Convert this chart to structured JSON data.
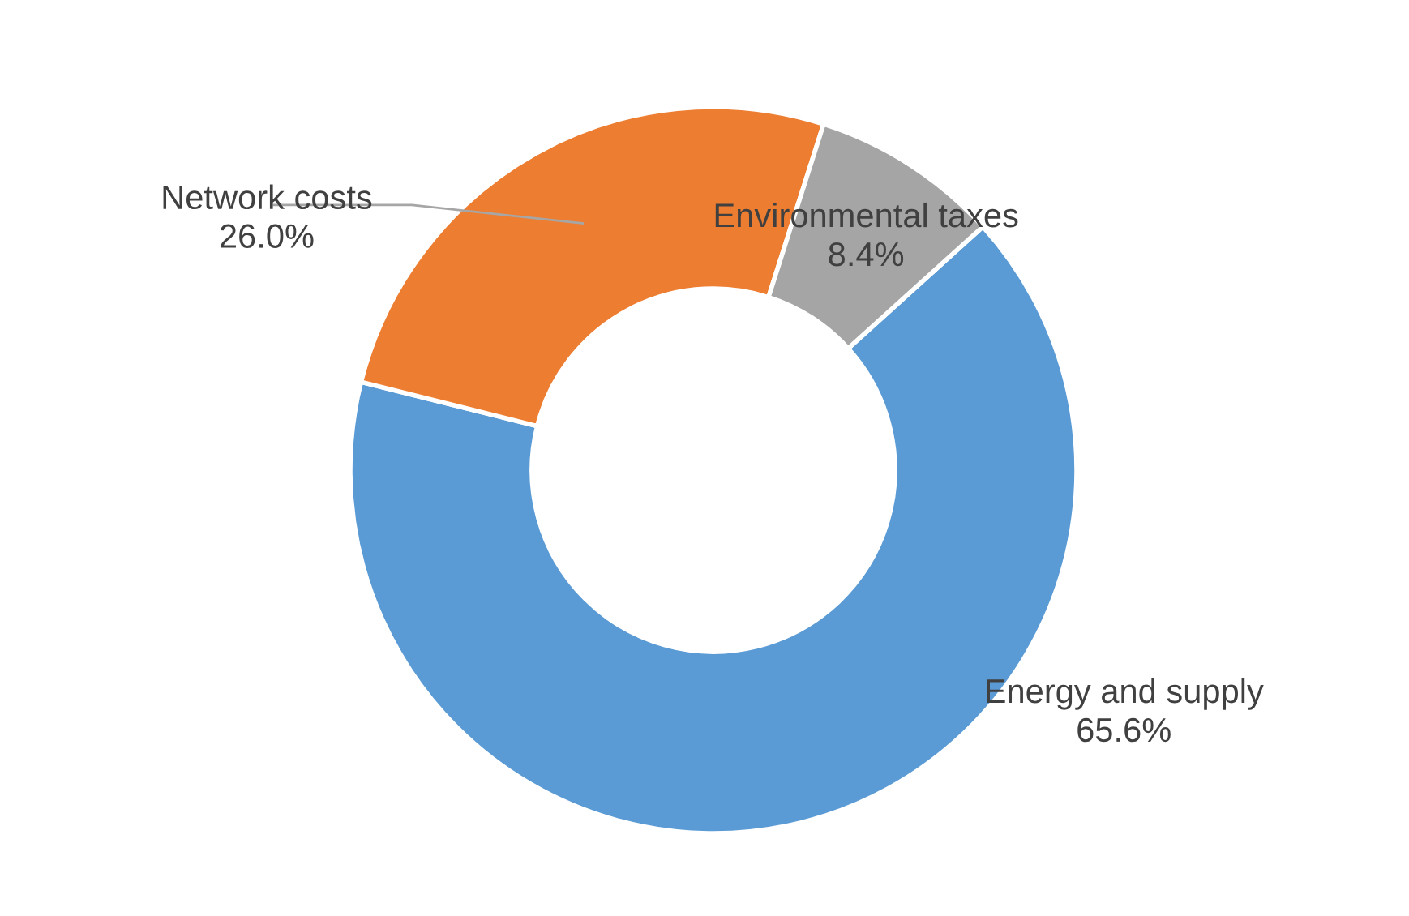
{
  "chart_data": {
    "type": "donut",
    "categories": [
      "Energy and supply",
      "Network costs",
      "Environmental taxes"
    ],
    "values": [
      65.6,
      26.0,
      8.4
    ],
    "colors": [
      "#5b9bd5",
      "#ed7d31",
      "#a5a5a5"
    ],
    "value_labels": [
      "65.6%",
      "26.0%",
      "8.4%"
    ],
    "legend": false
  }
}
